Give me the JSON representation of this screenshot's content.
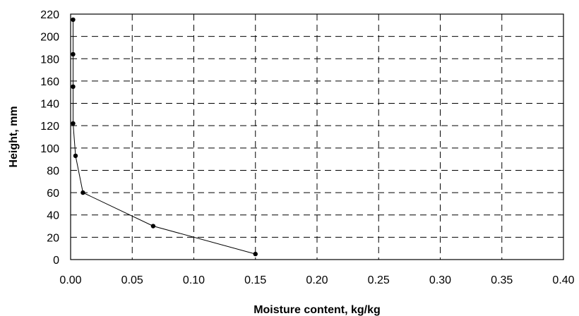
{
  "chart_data": {
    "type": "line",
    "xlabel": "Moisture content, kg/kg",
    "ylabel": "Height, mm",
    "xlim": [
      0,
      0.4
    ],
    "ylim": [
      0,
      220
    ],
    "x_ticks": [
      "0.00",
      "0.05",
      "0.10",
      "0.15",
      "0.20",
      "0.25",
      "0.30",
      "0.35",
      "0.40"
    ],
    "x_tick_values": [
      0,
      0.05,
      0.1,
      0.15,
      0.2,
      0.25,
      0.3,
      0.35,
      0.4
    ],
    "y_ticks": [
      "0",
      "20",
      "40",
      "60",
      "80",
      "100",
      "120",
      "140",
      "160",
      "180",
      "200",
      "220"
    ],
    "y_tick_values": [
      0,
      20,
      40,
      60,
      80,
      100,
      120,
      140,
      160,
      180,
      200,
      220
    ],
    "grid": true,
    "legend": "none",
    "series": [
      {
        "x": [
          0.15,
          0.067,
          0.01,
          0.004,
          0.002,
          0.002,
          0.002,
          0.002
        ],
        "y": [
          5,
          30,
          60,
          93,
          122,
          155,
          184,
          215
        ]
      }
    ]
  }
}
